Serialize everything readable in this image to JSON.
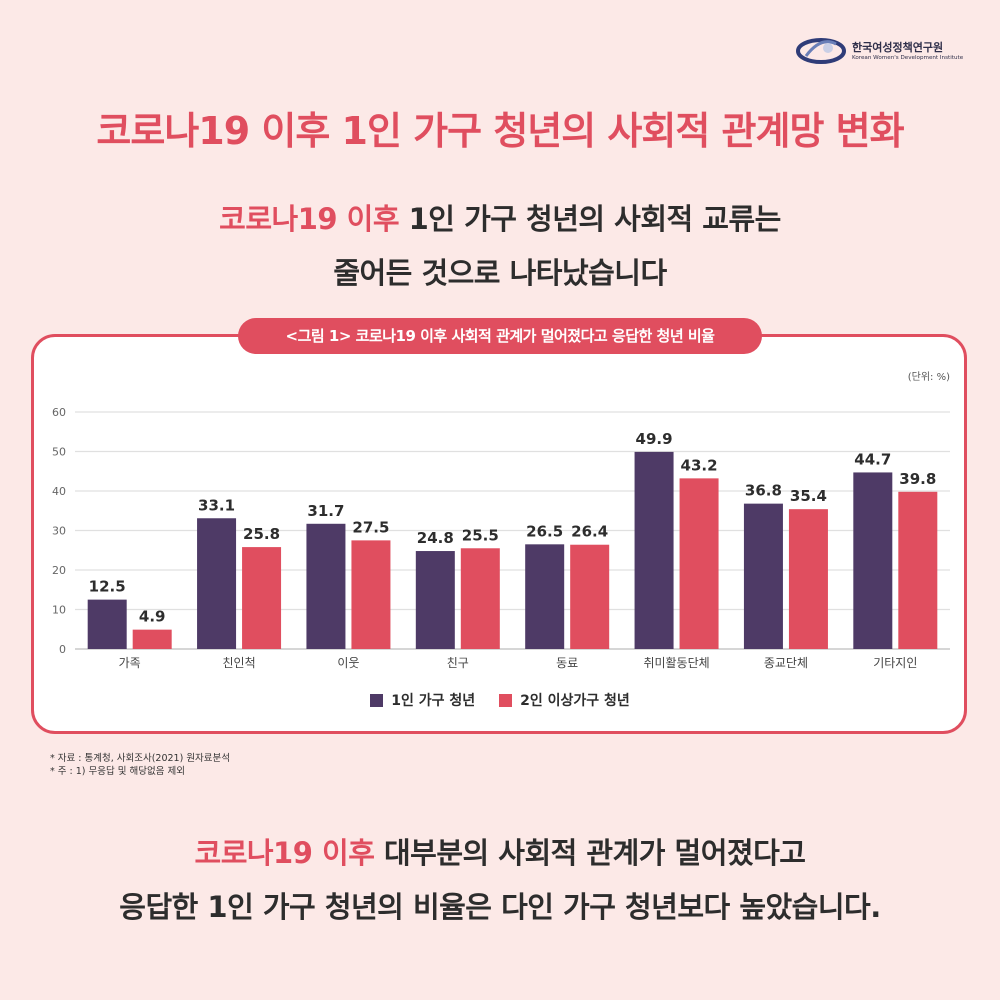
{
  "logo": {
    "name": "한국여성정책연구원",
    "name_en": "Korean Women's Development Institute"
  },
  "title": "코로나19 이후 1인 가구 청년의 사회적 관계망 변화",
  "subtitle": {
    "line1_accent": "코로나19 이후",
    "line1_rest": " 1인 가구 청년의 사회적 교류는",
    "line2": "줄어든 것으로 나타났습니다"
  },
  "figure_label": "<그림 1> 코로나19 이후 사회적 관계가 멀어졌다고 응답한 청년 비율",
  "colors": {
    "accent": "#e04e5f",
    "series1": "#4e3a66",
    "series2": "#e04e5f",
    "background": "#fce9e7"
  },
  "chart_data": {
    "type": "bar",
    "unit_note": "(단위: %)",
    "categories": [
      "가족",
      "친인척",
      "이웃",
      "친구",
      "동료",
      "취미활동단체",
      "종교단체",
      "기타지인"
    ],
    "series": [
      {
        "name": "1인 가구 청년",
        "values": [
          12.5,
          33.1,
          31.7,
          24.8,
          26.5,
          49.9,
          36.8,
          44.7
        ]
      },
      {
        "name": "2인 이상가구 청년",
        "values": [
          4.9,
          25.8,
          27.5,
          25.5,
          26.4,
          43.2,
          35.4,
          39.8
        ]
      }
    ],
    "ylim": [
      0,
      60
    ],
    "yticks": [
      0,
      10,
      20,
      30,
      40,
      50,
      60
    ],
    "grid": true,
    "legend_position": "bottom"
  },
  "source": {
    "line1": "* 자료 : 통계청, 사회조사(2021) 원자료분석",
    "line2": "* 주 : 1) 무응답 및 해당없음 제외"
  },
  "bottom": {
    "line1_accent": "코로나19 이후",
    "line1_rest": " 대부분의 사회적 관계가 멀어졌다고",
    "line2": "응답한 1인 가구 청년의 비율은 다인 가구 청년보다 높았습니다."
  }
}
